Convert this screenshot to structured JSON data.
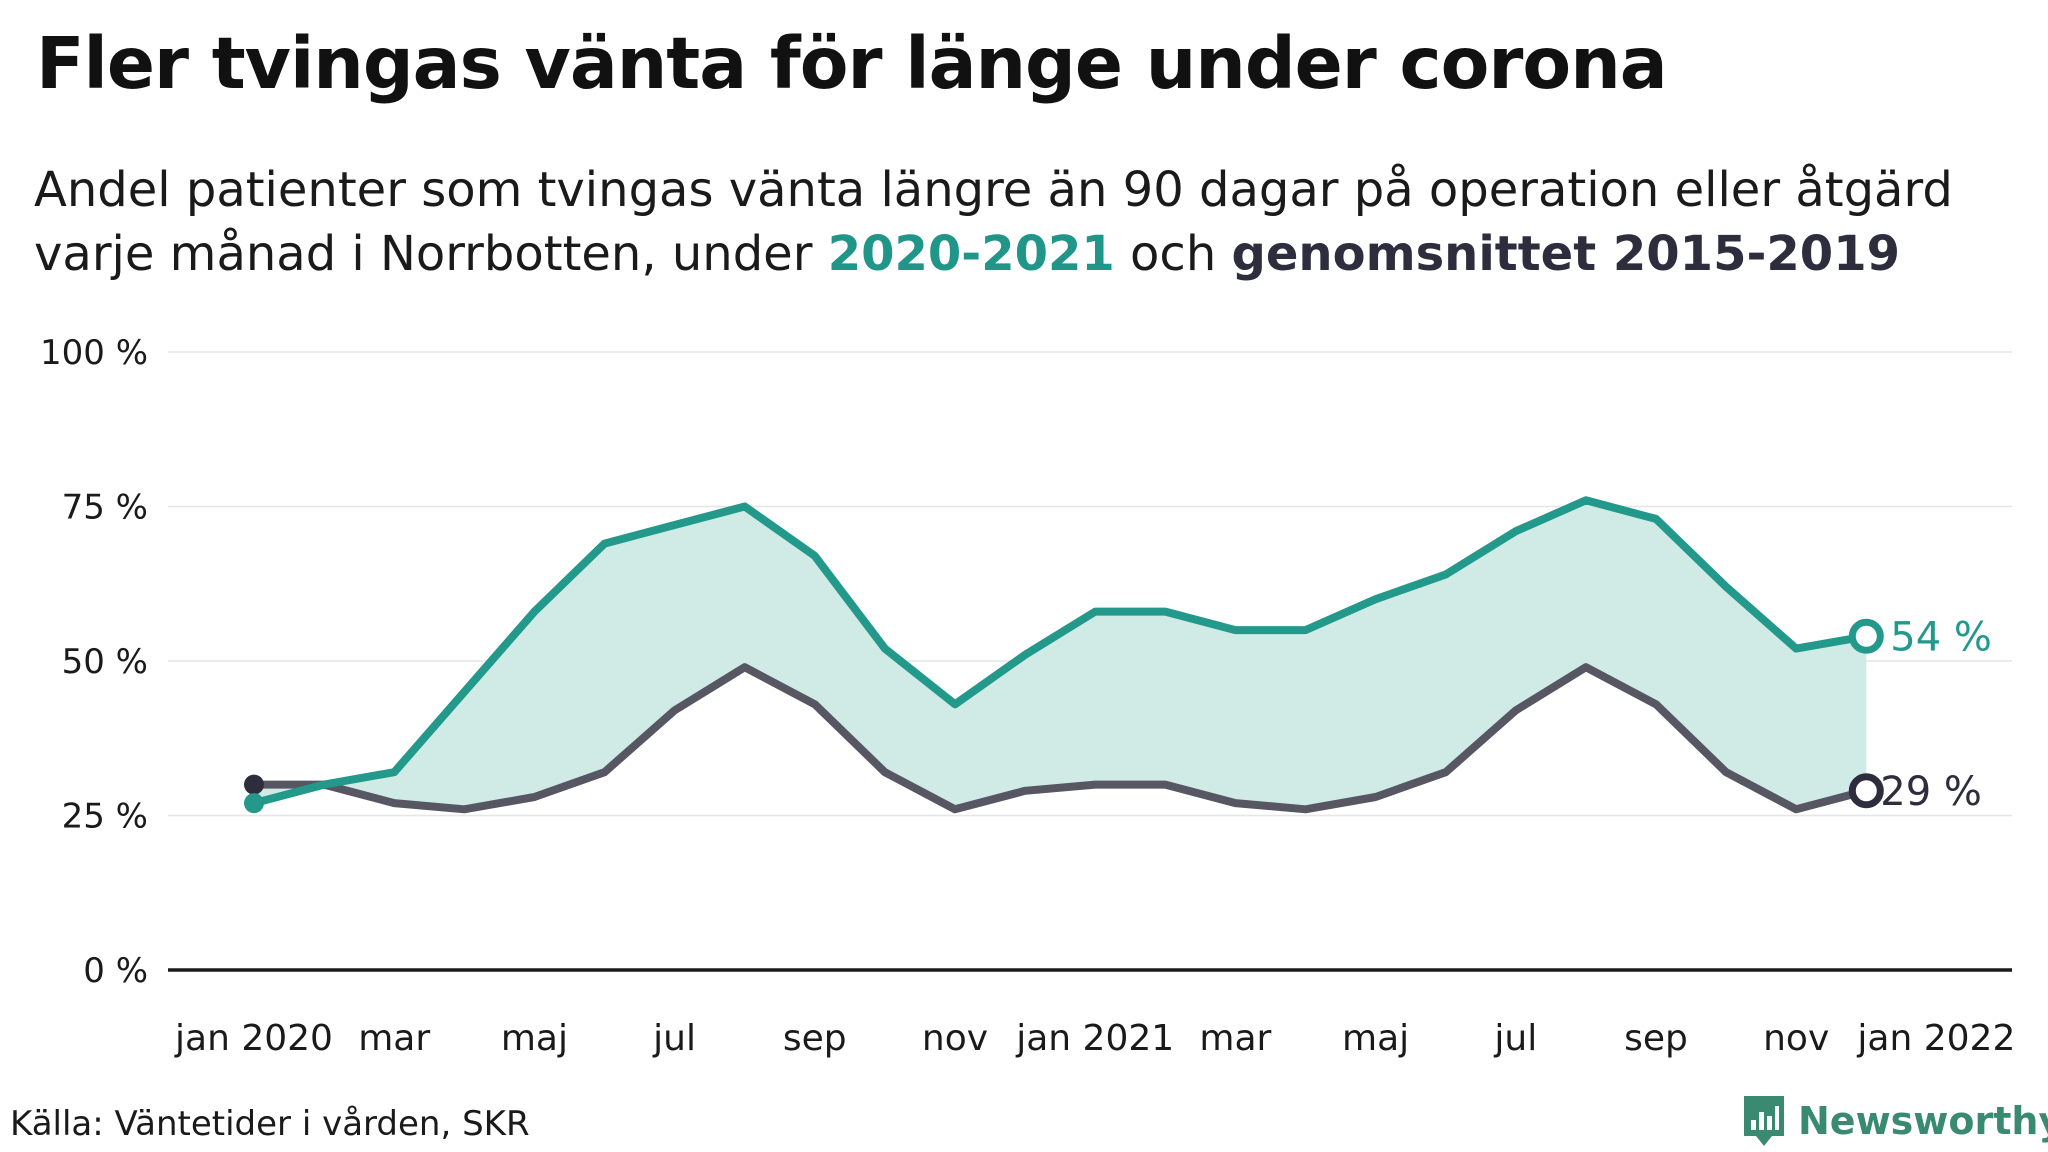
{
  "title": "Fler tvingas vänta för länge under corona",
  "subtitle": {
    "line1": "Andel patienter som tvingas vänta längre än 90 dagar på operation eller åtgärd",
    "line2_prefix": "varje månad i Norrbotten, under ",
    "line2_hl1": "2020-2021",
    "line2_mid": " och ",
    "line2_hl2": "genomsnittet 2015-2019"
  },
  "source": "Källa: Väntetider i vården, SKR",
  "brand": "Newsworthy",
  "colors": {
    "series_2020_2021": "#22998a",
    "series_avg": "#575663",
    "area_fill": "#d0eae6",
    "end_label_avg": "#2e2d3d",
    "grid": "#e6e6e6",
    "axis": "#1a1a1a",
    "brand": "#3a8a72"
  },
  "chart_data": {
    "type": "line",
    "ylim": [
      0,
      100
    ],
    "y_ticks": [
      0,
      25,
      50,
      75,
      100
    ],
    "y_tick_labels": [
      "0 %",
      "25 %",
      "50 %",
      "75 %",
      "100 %"
    ],
    "x_start": "2020-01",
    "x_tick_months": [
      0,
      2,
      4,
      6,
      8,
      10,
      12,
      14,
      16,
      18,
      20,
      22,
      24
    ],
    "x_tick_labels": [
      "jan 2020",
      "mar",
      "maj",
      "jul",
      "sep",
      "nov",
      "jan 2021",
      "mar",
      "maj",
      "jul",
      "sep",
      "nov",
      "jan 2022"
    ],
    "x": [
      "2020-01",
      "2020-02",
      "2020-03",
      "2020-04",
      "2020-05",
      "2020-06",
      "2020-07",
      "2020-08",
      "2020-09",
      "2020-10",
      "2020-11",
      "2020-12",
      "2021-01",
      "2021-02",
      "2021-03",
      "2021-04",
      "2021-05",
      "2021-06",
      "2021-07",
      "2021-08",
      "2021-09",
      "2021-10",
      "2021-11",
      "2021-12"
    ],
    "series": [
      {
        "name": "2020-2021",
        "values": [
          27,
          30,
          32,
          45,
          58,
          69,
          72,
          75,
          67,
          52,
          43,
          51,
          58,
          58,
          55,
          55,
          60,
          64,
          71,
          76,
          73,
          62,
          52,
          54
        ]
      },
      {
        "name": "genomsnittet 2015-2019",
        "values": [
          30,
          30,
          27,
          26,
          28,
          32,
          42,
          49,
          43,
          32,
          26,
          29,
          30,
          30,
          27,
          26,
          28,
          32,
          42,
          49,
          43,
          32,
          26,
          29
        ]
      }
    ],
    "end_labels": [
      "54 %",
      "29 %"
    ],
    "legend": "none",
    "grid": true
  }
}
